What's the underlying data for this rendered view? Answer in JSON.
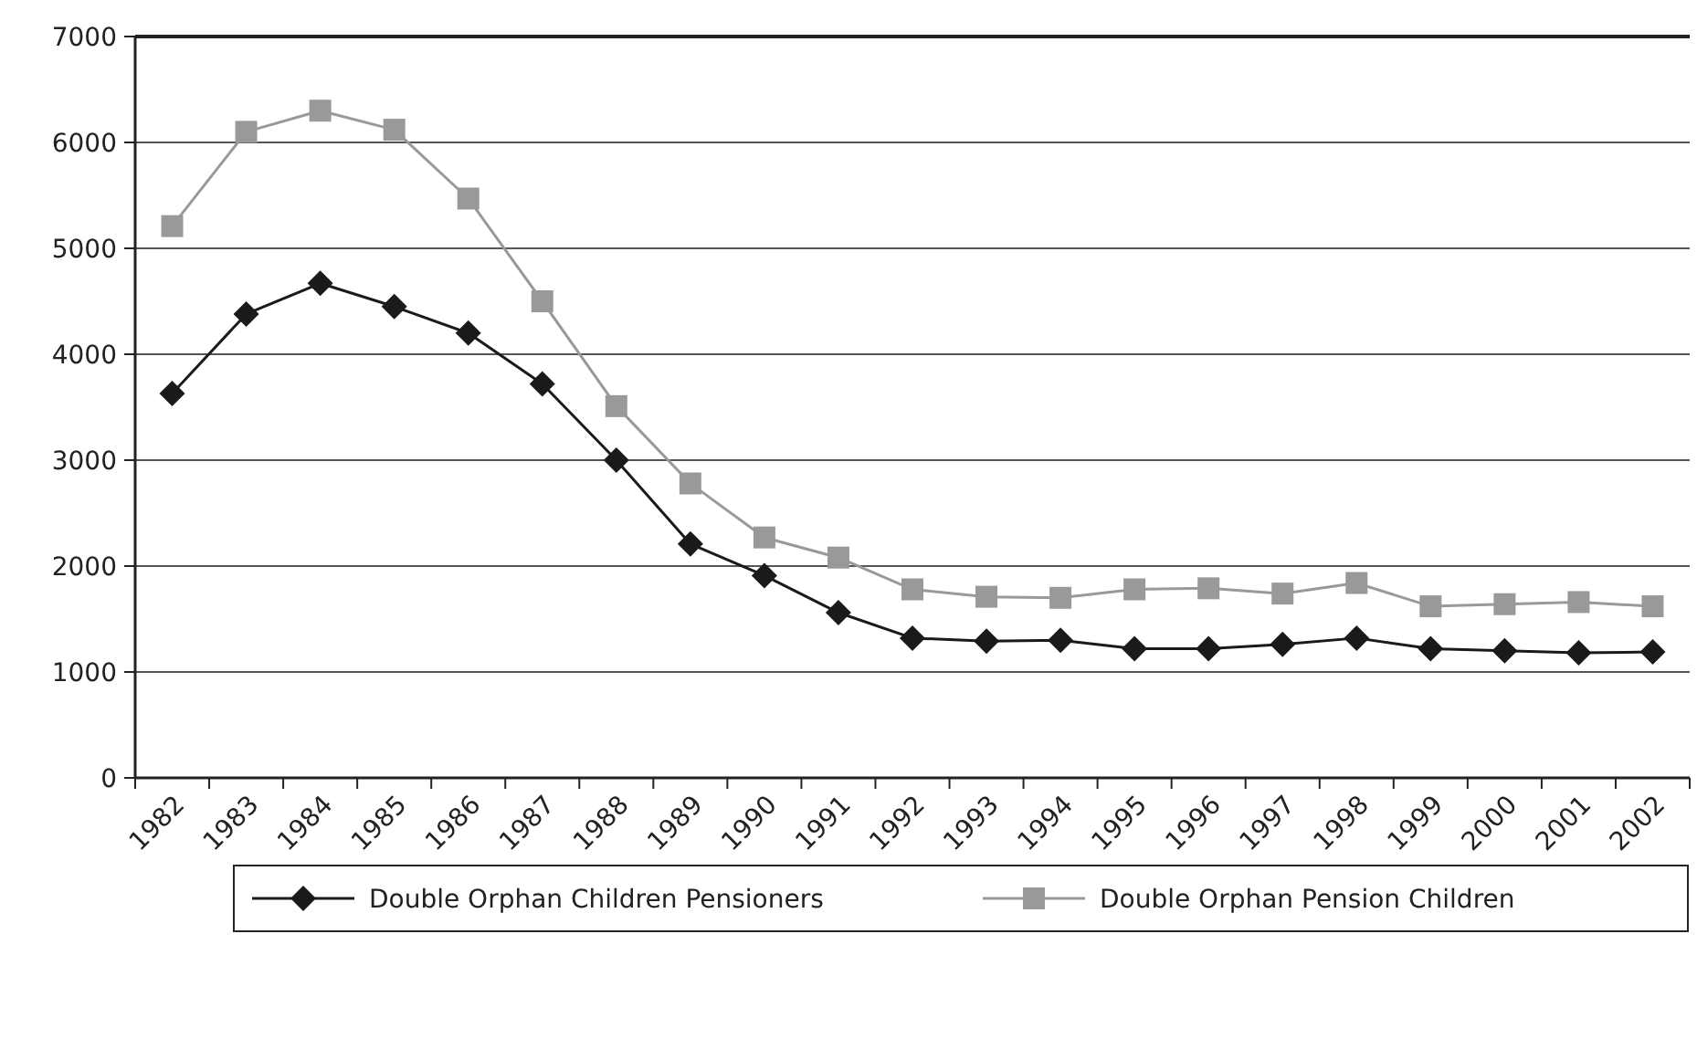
{
  "chart_data": {
    "type": "line",
    "categories": [
      "1982",
      "1983",
      "1984",
      "1985",
      "1986",
      "1987",
      "1988",
      "1989",
      "1990",
      "1991",
      "1992",
      "1993",
      "1994",
      "1995",
      "1996",
      "1997",
      "1998",
      "1999",
      "2000",
      "2001",
      "2002"
    ],
    "series": [
      {
        "name": "Double Orphan Children Pensioners",
        "color": "#1a1a1a",
        "marker": "diamond",
        "values": [
          3630,
          4380,
          4670,
          4450,
          4200,
          3720,
          3000,
          2210,
          1910,
          1560,
          1320,
          1290,
          1300,
          1220,
          1220,
          1260,
          1320,
          1220,
          1200,
          1180,
          1190
        ]
      },
      {
        "name": "Double Orphan Pension Children",
        "color": "#999999",
        "marker": "square",
        "values": [
          5210,
          6100,
          6300,
          6120,
          5470,
          4500,
          3510,
          2780,
          2270,
          2080,
          1780,
          1710,
          1700,
          1780,
          1790,
          1740,
          1840,
          1620,
          1640,
          1660,
          1620
        ]
      }
    ],
    "ylim": [
      0,
      7000
    ],
    "yticks": [
      0,
      1000,
      2000,
      3000,
      4000,
      5000,
      6000,
      7000
    ],
    "grid": "y",
    "legend": "bottom",
    "line_style": "solid"
  }
}
